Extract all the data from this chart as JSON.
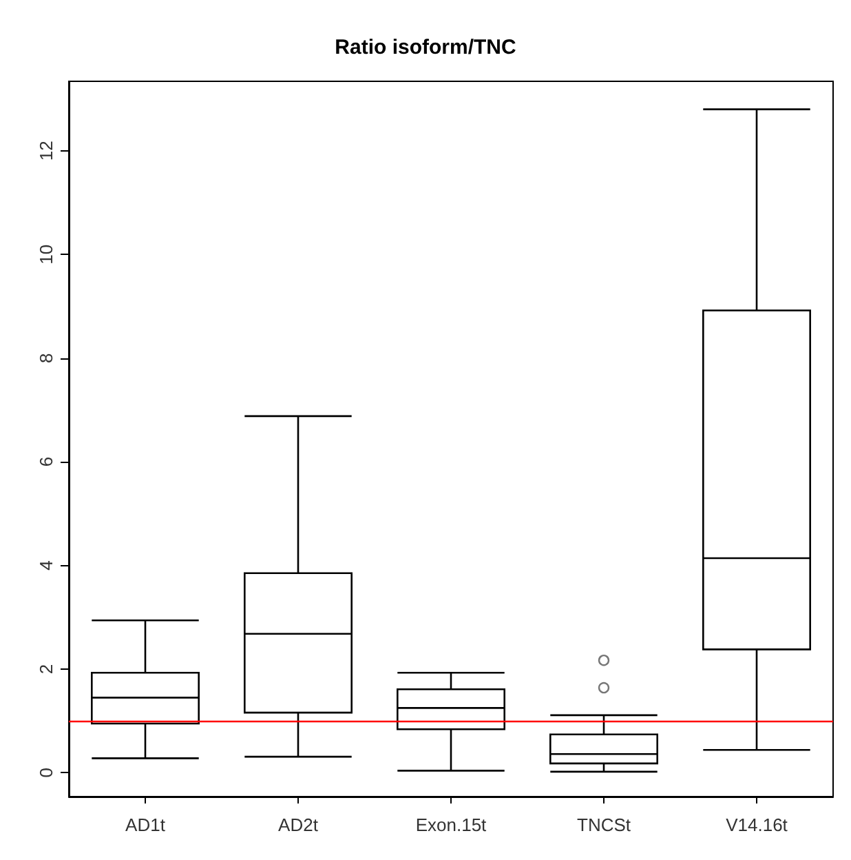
{
  "chart_data": {
    "type": "box",
    "title": "Ratio isoform/TNC",
    "categories": [
      "AD1t",
      "AD2t",
      "Exon.15t",
      "TNCSt",
      "V14.16t"
    ],
    "boxes": [
      {
        "low": 0.28,
        "q1": 0.95,
        "median": 1.45,
        "q3": 1.93,
        "high": 2.94
      },
      {
        "low": 0.31,
        "q1": 1.16,
        "median": 2.68,
        "q3": 3.85,
        "high": 6.88
      },
      {
        "low": 0.04,
        "q1": 0.84,
        "median": 1.25,
        "q3": 1.61,
        "high": 1.93
      },
      {
        "low": 0.02,
        "q1": 0.18,
        "median": 0.36,
        "q3": 0.74,
        "high": 1.11,
        "outliers": [
          1.64,
          2.17
        ]
      },
      {
        "low": 0.44,
        "q1": 2.38,
        "median": 4.14,
        "q3": 8.92,
        "high": 12.8
      }
    ],
    "ylim": [
      -0.46,
      13.34
    ],
    "yticks": [
      0,
      2,
      4,
      6,
      8,
      10,
      12
    ],
    "ref_lines": [
      {
        "axis": "y",
        "value": 1,
        "color": "#ff0000"
      }
    ],
    "grid": false,
    "legend": false
  }
}
